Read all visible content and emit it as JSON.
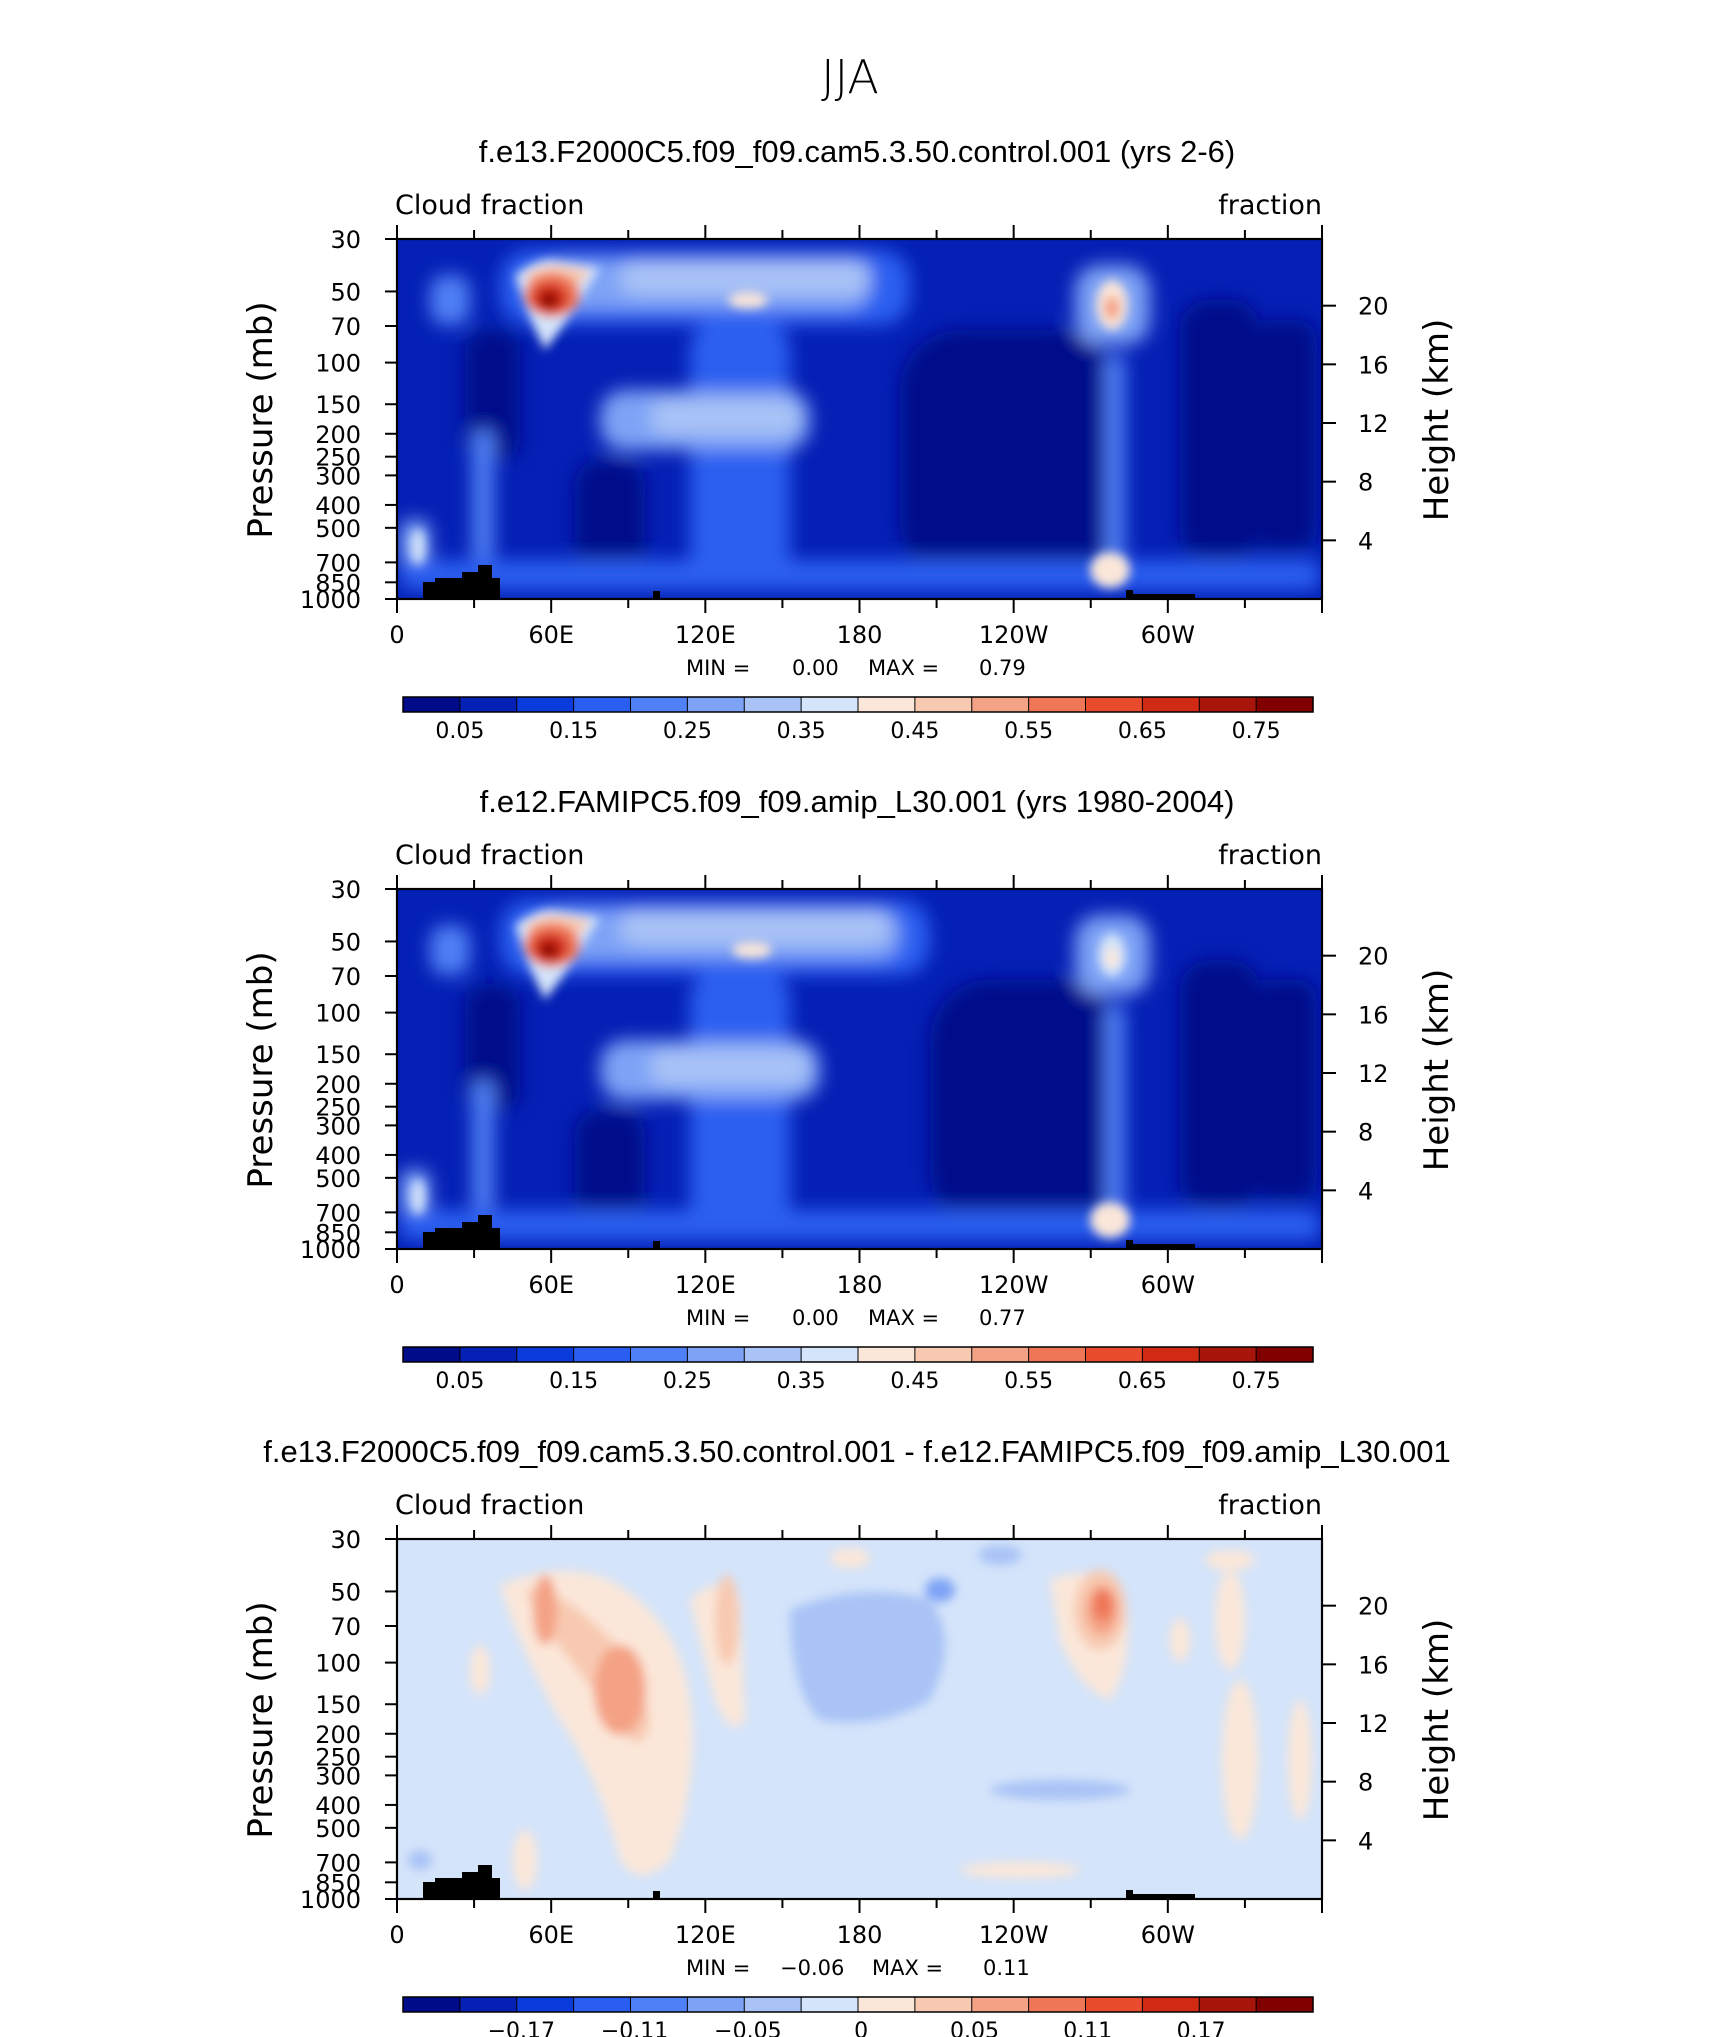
{
  "figure_title": "JJA",
  "chart_data": [
    {
      "type": "heatmap",
      "title": "f.e13.F2000C5.f09_f09.cam5.3.50.control.001 (yrs 2-6)",
      "left_label": "Cloud fraction",
      "right_label": "fraction",
      "ylabel": "Pressure (mb)",
      "y2label": "Height (km)",
      "xlabel": "",
      "x_ticks": [
        "0",
        "60E",
        "120E",
        "180",
        "120W",
        "60W"
      ],
      "y_ticks": [
        "1000",
        "850",
        "700",
        "500",
        "400",
        "300",
        "250",
        "200",
        "150",
        "100",
        "70",
        "50",
        "30"
      ],
      "y2_ticks": [
        "4",
        "8",
        "12",
        "16",
        "20"
      ],
      "ylim": [
        1000,
        30
      ],
      "stats": {
        "min_label": "MIN =",
        "min": "0.00",
        "max_label": "MAX =",
        "max": "0.79"
      },
      "colorbar": {
        "levels": [
          "0.05",
          "0.15",
          "0.25",
          "0.35",
          "0.45",
          "0.55",
          "0.65",
          "0.75"
        ],
        "colors": [
          "#000b8a",
          "#0420b5",
          "#0a3cdc",
          "#2a5ef0",
          "#4f80f5",
          "#7ea3f6",
          "#a9c3f6",
          "#d4e4fa",
          "#fbe7d9",
          "#f8c9b1",
          "#f4a285",
          "#ef7657",
          "#e84c2c",
          "#d02a14",
          "#a8150a",
          "#800000"
        ]
      },
      "features": [
        {
          "name": "upper-tropospheric maximum 60E",
          "lon": 60,
          "plev": 200,
          "value": 0.79
        },
        {
          "name": "upper-tropospheric maximum near 80W",
          "lon": 280,
          "plev": 200,
          "value": 0.5
        },
        {
          "name": "low cloud near 15W coast",
          "lon": 275,
          "plev": 950,
          "value": 0.5
        }
      ]
    },
    {
      "type": "heatmap",
      "title": "f.e12.FAMIPC5.f09_f09.amip_L30.001 (yrs 1980-2004)",
      "left_label": "Cloud fraction",
      "right_label": "fraction",
      "ylabel": "Pressure (mb)",
      "y2label": "Height (km)",
      "xlabel": "",
      "x_ticks": [
        "0",
        "60E",
        "120E",
        "180",
        "120W",
        "60W"
      ],
      "y_ticks": [
        "1000",
        "850",
        "700",
        "500",
        "400",
        "300",
        "250",
        "200",
        "150",
        "100",
        "70",
        "50",
        "30"
      ],
      "y2_ticks": [
        "4",
        "8",
        "12",
        "16",
        "20"
      ],
      "ylim": [
        1000,
        30
      ],
      "stats": {
        "min_label": "MIN =",
        "min": "0.00",
        "max_label": "MAX =",
        "max": "0.77"
      },
      "colorbar": {
        "levels": [
          "0.05",
          "0.15",
          "0.25",
          "0.35",
          "0.45",
          "0.55",
          "0.65",
          "0.75"
        ],
        "colors": [
          "#000b8a",
          "#0420b5",
          "#0a3cdc",
          "#2a5ef0",
          "#4f80f5",
          "#7ea3f6",
          "#a9c3f6",
          "#d4e4fa",
          "#fbe7d9",
          "#f8c9b1",
          "#f4a285",
          "#ef7657",
          "#e84c2c",
          "#d02a14",
          "#a8150a",
          "#800000"
        ]
      },
      "features": [
        {
          "name": "upper-tropospheric maximum 60E",
          "lon": 60,
          "plev": 200,
          "value": 0.77
        },
        {
          "name": "upper-tropospheric maximum near 80W",
          "lon": 280,
          "plev": 200,
          "value": 0.45
        },
        {
          "name": "low cloud near 15W coast",
          "lon": 275,
          "plev": 950,
          "value": 0.5
        }
      ]
    },
    {
      "type": "heatmap",
      "title": "f.e13.F2000C5.f09_f09.cam5.3.50.control.001 - f.e12.FAMIPC5.f09_f09.amip_L30.001",
      "left_label": "Cloud fraction",
      "right_label": "fraction",
      "ylabel": "Pressure (mb)",
      "y2label": "Height (km)",
      "xlabel": "",
      "x_ticks": [
        "0",
        "60E",
        "120E",
        "180",
        "120W",
        "60W"
      ],
      "y_ticks": [
        "1000",
        "850",
        "700",
        "500",
        "400",
        "300",
        "250",
        "200",
        "150",
        "100",
        "70",
        "50",
        "30"
      ],
      "y2_ticks": [
        "4",
        "8",
        "12",
        "16",
        "20"
      ],
      "ylim": [
        1000,
        30
      ],
      "stats": {
        "min_label": "MIN =",
        "min": "−0.06",
        "max_label": "MAX =",
        "max": "0.11"
      },
      "colorbar": {
        "levels": [
          "−0.17",
          "−0.11",
          "−0.05",
          "0",
          "0.05",
          "0.11",
          "0.17"
        ],
        "colors": [
          "#000b8a",
          "#0420b5",
          "#0a3cdc",
          "#2a5ef0",
          "#4f80f5",
          "#7ea3f6",
          "#a9c3f6",
          "#d4e4fa",
          "#fbe7d9",
          "#f8c9b1",
          "#f4a285",
          "#ef7657",
          "#e84c2c",
          "#d02a14",
          "#a8150a",
          "#800000"
        ]
      },
      "features": [
        {
          "name": "positive difference near 80W",
          "lon": 280,
          "plev": 200,
          "value": 0.11
        },
        {
          "name": "positive difference near 100E",
          "lon": 100,
          "plev": 500,
          "value": 0.08
        },
        {
          "name": "negative difference near 150E-180",
          "lon": 165,
          "plev": 450,
          "value": -0.06
        }
      ]
    }
  ]
}
